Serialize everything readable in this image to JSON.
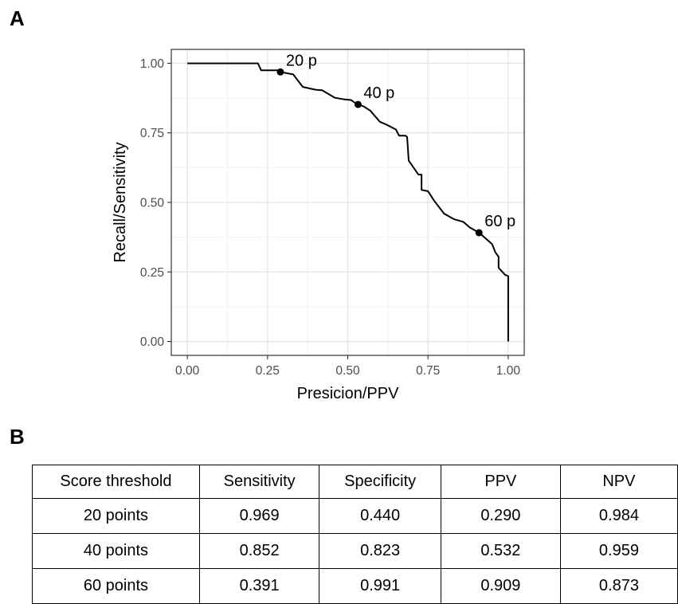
{
  "panels": {
    "a": "A",
    "b": "B"
  },
  "chart_data": {
    "type": "line",
    "xlabel": "Presicion/PPV",
    "ylabel": "Recall/Sensitivity",
    "xlim": [
      -0.05,
      1.05
    ],
    "ylim": [
      -0.05,
      1.05
    ],
    "grid": true,
    "x_ticks": [
      0.0,
      0.25,
      0.5,
      0.75,
      1.0
    ],
    "y_ticks": [
      0.0,
      0.25,
      0.5,
      0.75,
      1.0
    ],
    "x_tick_labels": [
      "0.00",
      "0.25",
      "0.50",
      "0.75",
      "1.00"
    ],
    "y_tick_labels": [
      "0.00",
      "0.25",
      "0.50",
      "0.75",
      "1.00"
    ],
    "series": [
      {
        "x": [
          0.0,
          0.22,
          0.23,
          0.28,
          0.29,
          0.33,
          0.36,
          0.38,
          0.4,
          0.42,
          0.46,
          0.49,
          0.51,
          0.53,
          0.55,
          0.57,
          0.6,
          0.62,
          0.65,
          0.66,
          0.68,
          0.685,
          0.69,
          0.72,
          0.73,
          0.73,
          0.75,
          0.77,
          0.8,
          0.83,
          0.86,
          0.88,
          0.91,
          0.93,
          0.95,
          0.96,
          0.97,
          0.97,
          0.99,
          1.0,
          1.0
        ],
        "y": [
          1.0,
          1.0,
          0.975,
          0.975,
          0.969,
          0.96,
          0.915,
          0.91,
          0.905,
          0.903,
          0.876,
          0.87,
          0.868,
          0.852,
          0.845,
          0.83,
          0.79,
          0.78,
          0.762,
          0.74,
          0.74,
          0.735,
          0.65,
          0.6,
          0.6,
          0.545,
          0.54,
          0.505,
          0.46,
          0.44,
          0.43,
          0.41,
          0.391,
          0.37,
          0.35,
          0.32,
          0.305,
          0.265,
          0.24,
          0.235,
          0.0
        ]
      }
    ],
    "points": [
      {
        "x": 0.29,
        "y": 0.969,
        "label": "20 p"
      },
      {
        "x": 0.532,
        "y": 0.852,
        "label": "40 p"
      },
      {
        "x": 0.909,
        "y": 0.391,
        "label": "60 p"
      }
    ]
  },
  "table": {
    "headers": [
      "Score threshold",
      "Sensitivity",
      "Specificity",
      "PPV",
      "NPV"
    ],
    "rows": [
      [
        "20 points",
        "0.969",
        "0.440",
        "0.290",
        "0.984"
      ],
      [
        "40 points",
        "0.852",
        "0.823",
        "0.532",
        "0.959"
      ],
      [
        "60 points",
        "0.391",
        "0.991",
        "0.909",
        "0.873"
      ]
    ]
  }
}
